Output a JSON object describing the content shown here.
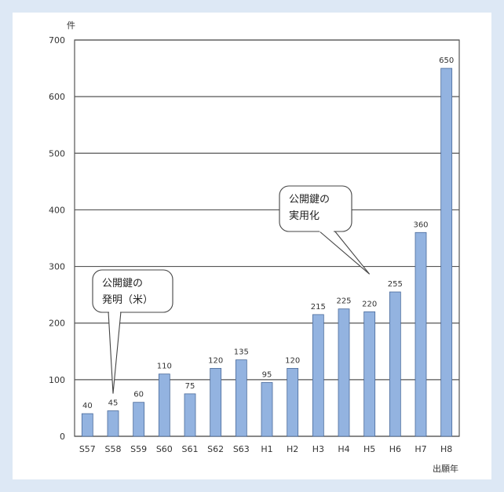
{
  "chart_data": {
    "type": "bar",
    "y_unit_label": "件",
    "x_unit_label": "出願年",
    "ylim": [
      0,
      700
    ],
    "y_ticks": [
      0,
      100,
      200,
      300,
      400,
      500,
      600,
      700
    ],
    "grid": true,
    "categories": [
      "S57",
      "S58",
      "S59",
      "S60",
      "S61",
      "S62",
      "S63",
      "H1",
      "H2",
      "H3",
      "H4",
      "H5",
      "H6",
      "H7",
      "H8"
    ],
    "values": [
      40,
      45,
      60,
      110,
      75,
      120,
      135,
      95,
      120,
      215,
      225,
      220,
      255,
      360,
      650
    ],
    "value_labels": [
      "40",
      "45",
      "60",
      "110",
      "75",
      "120",
      "135",
      "95",
      "120",
      "215",
      "225",
      "220",
      "255",
      "360",
      "650"
    ],
    "bar_color": "#93b3e0",
    "annotations": [
      {
        "lines": [
          "公開鍵の",
          "発明（米）"
        ],
        "points_to_category": "S58"
      },
      {
        "lines": [
          "公開鍵の",
          "実用化"
        ],
        "points_to_category": "H5"
      }
    ]
  }
}
